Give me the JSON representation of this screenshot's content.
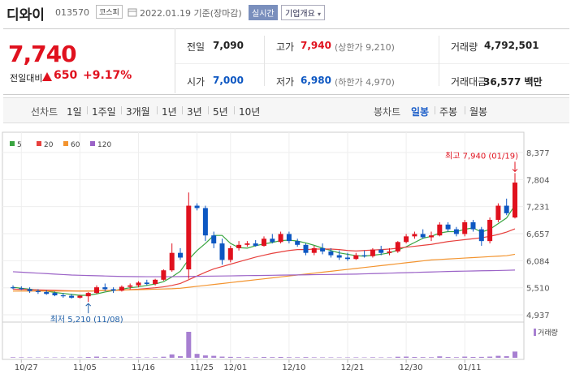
{
  "header": {
    "name": "디와이",
    "code": "013570",
    "market": "코스피",
    "date": "2022.01.19 기준(장마감)",
    "realtime": "실시간",
    "overview": "기업개요"
  },
  "quote": {
    "price": "7,740",
    "change_label": "전일대비",
    "change": "650",
    "change_pct": "+9.17%"
  },
  "summary": [
    [
      {
        "label": "전일",
        "value": "7,090",
        "color": "#222222"
      },
      {
        "label": "고가",
        "value": "7,940",
        "note": "(상한가 9,210)",
        "color": "#e0111e"
      },
      {
        "label": "거래량",
        "value": "4,792,501",
        "color": "#222222"
      }
    ],
    [
      {
        "label": "시가",
        "value": "7,000",
        "color": "#0d57c2"
      },
      {
        "label": "저가",
        "value": "6,980",
        "note": "(하한가 4,970)",
        "color": "#0d57c2"
      },
      {
        "label": "거래대금",
        "value": "36,577 백만",
        "color": "#222222"
      }
    ]
  ],
  "tabs": {
    "line": {
      "label": "선차트",
      "items": [
        "1일",
        "1주일",
        "3개월",
        "1년",
        "3년",
        "5년",
        "10년"
      ]
    },
    "candle": {
      "label": "봉차트",
      "items": [
        "일봉",
        "주봉",
        "월봉"
      ],
      "active": 0
    }
  },
  "chart_data": {
    "type": "candlestick",
    "categories": [
      null,
      "10/27",
      null,
      null,
      null,
      null,
      null,
      null,
      "11/05",
      null,
      null,
      null,
      null,
      null,
      null,
      "11/16",
      null,
      null,
      null,
      null,
      null,
      null,
      "11/25",
      null,
      null,
      null,
      "12/01",
      null,
      null,
      null,
      null,
      null,
      null,
      "12/10",
      null,
      null,
      null,
      null,
      null,
      null,
      "12/21",
      null,
      null,
      null,
      null,
      null,
      null,
      "12/30",
      null,
      null,
      null,
      null,
      null,
      null,
      "01/11",
      null,
      null,
      null,
      null,
      null,
      null
    ],
    "open": [
      5520,
      5500,
      5480,
      5440,
      5420,
      5400,
      5350,
      5340,
      5300,
      5330,
      5400,
      5520,
      5480,
      5450,
      5530,
      5560,
      5620,
      5590,
      5680,
      5880,
      6250,
      5900,
      7250,
      7200,
      6620,
      6450,
      6100,
      6350,
      6420,
      6450,
      6400,
      6550,
      6480,
      6650,
      6500,
      6420,
      6250,
      6350,
      6280,
      6200,
      6150,
      6120,
      6200,
      6180,
      6320,
      6250,
      6280,
      6480,
      6600,
      6650,
      6580,
      6620,
      6850,
      6750,
      6650,
      6900,
      6750,
      6500,
      6950,
      7250,
      7000
    ],
    "high": [
      5560,
      5540,
      5520,
      5480,
      5460,
      5430,
      5400,
      5380,
      5360,
      5420,
      5560,
      5600,
      5520,
      5560,
      5600,
      5650,
      5680,
      5700,
      5900,
      6450,
      6350,
      7530,
      7300,
      7250,
      6700,
      6550,
      6400,
      6500,
      6500,
      6520,
      6600,
      6650,
      6700,
      6700,
      6550,
      6450,
      6400,
      6450,
      6350,
      6300,
      6250,
      6250,
      6300,
      6350,
      6400,
      6350,
      6500,
      6650,
      6700,
      6750,
      6700,
      6900,
      6900,
      6800,
      6950,
      6950,
      6800,
      7000,
      7300,
      7400,
      7940
    ],
    "low": [
      5480,
      5460,
      5400,
      5380,
      5360,
      5330,
      5300,
      5280,
      5280,
      5210,
      5380,
      5440,
      5400,
      5430,
      5480,
      5520,
      5560,
      5560,
      5660,
      5850,
      6100,
      5700,
      7150,
      6500,
      6350,
      6000,
      6050,
      6300,
      6380,
      6380,
      6380,
      6450,
      6450,
      6450,
      6380,
      6200,
      6200,
      6220,
      6150,
      6100,
      6080,
      6100,
      6150,
      6150,
      6200,
      6200,
      6250,
      6450,
      6550,
      6550,
      6500,
      6600,
      6700,
      6600,
      6600,
      6700,
      6400,
      6450,
      6900,
      7050,
      6980
    ],
    "close": [
      5500,
      5480,
      5440,
      5420,
      5380,
      5350,
      5330,
      5300,
      5340,
      5400,
      5520,
      5480,
      5450,
      5530,
      5560,
      5620,
      5590,
      5680,
      5880,
      6250,
      6150,
      7250,
      7200,
      6620,
      6450,
      6100,
      6350,
      6420,
      6450,
      6400,
      6550,
      6480,
      6650,
      6500,
      6420,
      6250,
      6350,
      6280,
      6200,
      6150,
      6120,
      6200,
      6180,
      6320,
      6250,
      6280,
      6480,
      6600,
      6650,
      6580,
      6620,
      6850,
      6750,
      6650,
      6900,
      6750,
      6500,
      6950,
      7250,
      7090,
      7740
    ],
    "up_color": "#e0111e",
    "down_color": "#0d57c2",
    "series": [
      {
        "name": "5",
        "color": "#3aa541",
        "values": [
          5520,
          5500,
          5480,
          5460,
          5440,
          5410,
          5390,
          5370,
          5350,
          5350,
          5380,
          5420,
          5450,
          5480,
          5510,
          5530,
          5560,
          5590,
          5640,
          5740,
          5860,
          6110,
          6300,
          6450,
          6620,
          6620,
          6450,
          6360,
          6350,
          6400,
          6440,
          6470,
          6510,
          6520,
          6500,
          6460,
          6410,
          6350,
          6300,
          6250,
          6220,
          6190,
          6180,
          6200,
          6220,
          6250,
          6310,
          6380,
          6470,
          6560,
          6600,
          6670,
          6700,
          6700,
          6750,
          6780,
          6690,
          6750,
          6870,
          6990,
          7260
        ]
      },
      {
        "name": "20",
        "color": "#e7403d",
        "values": [
          5480,
          5475,
          5470,
          5465,
          5460,
          5455,
          5450,
          5445,
          5440,
          5440,
          5445,
          5450,
          5455,
          5460,
          5470,
          5480,
          5495,
          5510,
          5530,
          5560,
          5600,
          5680,
          5760,
          5840,
          5910,
          5960,
          6010,
          6060,
          6110,
          6160,
          6200,
          6240,
          6270,
          6300,
          6320,
          6320,
          6330,
          6330,
          6330,
          6320,
          6300,
          6290,
          6300,
          6310,
          6320,
          6330,
          6350,
          6370,
          6390,
          6410,
          6430,
          6460,
          6490,
          6510,
          6530,
          6550,
          6570,
          6600,
          6640,
          6690,
          6760
        ]
      },
      {
        "name": "60",
        "color": "#f3942f",
        "values": [
          5440,
          5440,
          5440,
          5440,
          5440,
          5440,
          5440,
          5440,
          5440,
          5440,
          5445,
          5450,
          5455,
          5460,
          5465,
          5470,
          5475,
          5480,
          5485,
          5490,
          5500,
          5520,
          5540,
          5560,
          5580,
          5600,
          5620,
          5640,
          5660,
          5680,
          5700,
          5720,
          5740,
          5760,
          5780,
          5800,
          5820,
          5840,
          5860,
          5880,
          5900,
          5920,
          5940,
          5960,
          5980,
          6000,
          6020,
          6040,
          6060,
          6080,
          6100,
          6110,
          6120,
          6130,
          6140,
          6150,
          6160,
          6170,
          6180,
          6190,
          6220
        ]
      },
      {
        "name": "120",
        "color": "#9b63c7",
        "values": [
          5850,
          5840,
          5830,
          5820,
          5810,
          5800,
          5790,
          5780,
          5775,
          5770,
          5765,
          5760,
          5755,
          5750,
          5748,
          5746,
          5745,
          5745,
          5745,
          5745,
          5748,
          5750,
          5752,
          5755,
          5758,
          5760,
          5762,
          5765,
          5768,
          5770,
          5772,
          5775,
          5778,
          5780,
          5782,
          5785,
          5788,
          5790,
          5792,
          5795,
          5798,
          5800,
          5805,
          5810,
          5815,
          5820,
          5825,
          5830,
          5835,
          5840,
          5845,
          5850,
          5855,
          5860,
          5863,
          5866,
          5870,
          5873,
          5876,
          5880,
          5885
        ]
      }
    ],
    "volume": [
      420000,
      380000,
      350000,
      300000,
      320000,
      290000,
      310000,
      280000,
      330000,
      600000,
      900000,
      500000,
      350000,
      420000,
      380000,
      450000,
      320000,
      400000,
      800000,
      2600000,
      1200000,
      20000000,
      3000000,
      1800000,
      1500000,
      900000,
      700000,
      500000,
      450000,
      400000,
      600000,
      500000,
      650000,
      450000,
      400000,
      500000,
      380000,
      350000,
      330000,
      300000,
      310000,
      350000,
      300000,
      400000,
      320000,
      330000,
      800000,
      900000,
      600000,
      500000,
      450000,
      1100000,
      600000,
      450000,
      900000,
      650000,
      700000,
      900000,
      1500000,
      1200000,
      4792501
    ],
    "volume_label": "거래량",
    "volume_color": "#a77fd1",
    "volume_ylim": [
      0,
      25000000
    ],
    "ylim": [
      4817,
      8515
    ],
    "yticks": [
      {
        "value": 4937,
        "label": "4,937"
      },
      {
        "value": 5510,
        "label": "5,510"
      },
      {
        "value": 6084,
        "label": "6,084"
      },
      {
        "value": 6657,
        "label": "6,657"
      },
      {
        "value": 7231,
        "label": "7,231"
      },
      {
        "value": 7804,
        "label": "7,804"
      },
      {
        "value": 8377,
        "label": "8,377"
      }
    ],
    "grid": true,
    "annotations": {
      "high": "최고 7,940 (01/19)",
      "low": "최저 5,210 (11/08)"
    }
  }
}
